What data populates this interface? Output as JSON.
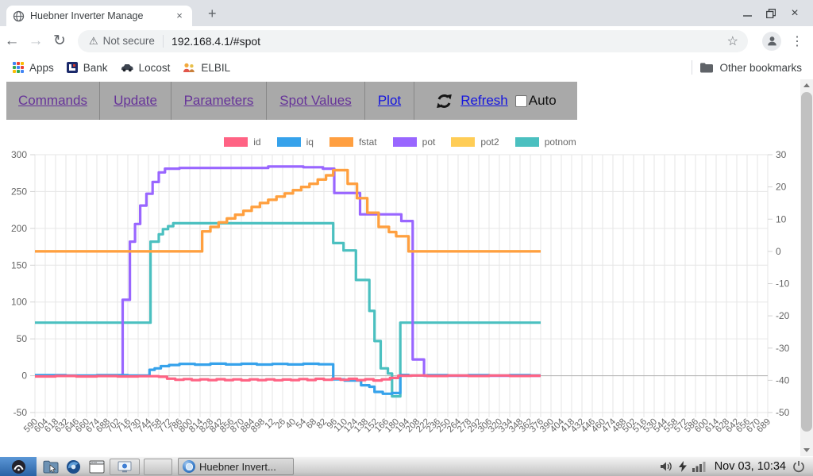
{
  "window": {
    "tab_title": "Huebner Inverter Manage",
    "tab_close": "×",
    "new_tab": "+",
    "close": "×"
  },
  "browser": {
    "security_label": "Not secure",
    "warning_glyph": "⚠",
    "url": "192.168.4.1/#spot",
    "back_glyph": "←",
    "forward_glyph": "→",
    "reload_glyph": "↻",
    "star_glyph": "☆",
    "menu_glyph": "⋮"
  },
  "bookmarks_bar": {
    "items": [
      {
        "label": "Apps"
      },
      {
        "label": "Bank"
      },
      {
        "label": "Locost"
      },
      {
        "label": "ELBIL"
      }
    ],
    "other_label": "Other bookmarks"
  },
  "nav": {
    "items": [
      {
        "label": "Commands",
        "visited": true
      },
      {
        "label": "Update",
        "visited": true
      },
      {
        "label": "Parameters",
        "visited": true
      },
      {
        "label": "Spot Values",
        "visited": true
      },
      {
        "label": "Plot",
        "visited": false
      }
    ],
    "refresh_label": "Refresh",
    "auto_label": "Auto",
    "auto_checked": false
  },
  "taskbar": {
    "task_label": "Huebner Invert...",
    "clock": "Nov 03, 10:34"
  },
  "chart_data": {
    "type": "line",
    "title": "",
    "x_labels": [
      "590",
      "604",
      "618",
      "632",
      "646",
      "660",
      "674",
      "688",
      "702",
      "716",
      "730",
      "744",
      "758",
      "772",
      "786",
      "800",
      "814",
      "828",
      "842",
      "856",
      "870",
      "884",
      "898",
      "12",
      "26",
      "40",
      "54",
      "68",
      "82",
      "96",
      "110",
      "124",
      "138",
      "152",
      "166",
      "180",
      "194",
      "208",
      "222",
      "236",
      "250",
      "264",
      "278",
      "292",
      "306",
      "320",
      "334",
      "348",
      "362",
      "376",
      "390",
      "404",
      "418",
      "432",
      "446",
      "460",
      "474",
      "488",
      "502",
      "516",
      "530",
      "544",
      "558",
      "572",
      "586",
      "600",
      "614",
      "628",
      "642",
      "656",
      "670",
      "689"
    ],
    "left_axis": {
      "min": -50,
      "max": 300,
      "ticks": [
        300,
        250,
        200,
        150,
        100,
        50,
        0,
        -50
      ]
    },
    "right_axis": {
      "min": -50,
      "max": 30,
      "ticks": [
        30,
        20,
        10,
        0,
        -10,
        -20,
        -30,
        -40,
        -50
      ]
    },
    "grid": true,
    "legend_position": "top",
    "data_end_index": 49,
    "series": [
      {
        "name": "id",
        "color": "#FF6384",
        "axis": "left",
        "points": [
          [
            0,
            -1
          ],
          [
            2,
            -0.4
          ],
          [
            4,
            -1
          ],
          [
            6,
            -0.5
          ],
          [
            8,
            -1
          ],
          [
            10,
            -0.7
          ],
          [
            12,
            -1.4
          ],
          [
            12.8,
            -4
          ],
          [
            13.6,
            -5.5
          ],
          [
            14.4,
            -4.5
          ],
          [
            15.2,
            -6
          ],
          [
            16,
            -5
          ],
          [
            16.8,
            -6
          ],
          [
            17.6,
            -4.8
          ],
          [
            18.4,
            -6
          ],
          [
            19.2,
            -5
          ],
          [
            20,
            -6.3
          ],
          [
            20.8,
            -5
          ],
          [
            21.6,
            -6
          ],
          [
            22.4,
            -5
          ],
          [
            23.2,
            -6.2
          ],
          [
            24,
            -5.2
          ],
          [
            24.8,
            -6
          ],
          [
            25.6,
            -4.5
          ],
          [
            26.4,
            -5.8
          ],
          [
            27.2,
            -4.2
          ],
          [
            28,
            -5.5
          ],
          [
            28.8,
            -4
          ],
          [
            29.6,
            -5.5
          ],
          [
            30.4,
            -4.2
          ],
          [
            31.2,
            -6
          ],
          [
            32,
            -4.8
          ],
          [
            32.8,
            -6.5
          ],
          [
            33.6,
            -5
          ],
          [
            34.4,
            -3
          ],
          [
            35.2,
            0
          ],
          [
            36.5,
            0.3
          ],
          [
            38,
            -0.3
          ],
          [
            40,
            0.3
          ],
          [
            42,
            -0.3
          ],
          [
            44,
            0.3
          ],
          [
            46,
            -0.3
          ],
          [
            48,
            0
          ],
          [
            49,
            0
          ]
        ]
      },
      {
        "name": "iq",
        "color": "#36A2EB",
        "axis": "left",
        "points": [
          [
            0,
            0.8
          ],
          [
            3,
            0.3
          ],
          [
            6,
            0.8
          ],
          [
            9,
            0.3
          ],
          [
            11.1,
            8
          ],
          [
            11.6,
            10
          ],
          [
            12.2,
            13
          ],
          [
            13,
            14.5
          ],
          [
            14,
            16
          ],
          [
            15.5,
            15
          ],
          [
            17,
            16.3
          ],
          [
            18.5,
            15.3
          ],
          [
            20,
            16.2
          ],
          [
            21.5,
            15.2
          ],
          [
            23,
            16
          ],
          [
            24.5,
            15.3
          ],
          [
            26,
            16.2
          ],
          [
            27.5,
            15.5
          ],
          [
            28.9,
            -5
          ],
          [
            30,
            -6.5
          ],
          [
            31.6,
            -13
          ],
          [
            32.4,
            -15
          ],
          [
            32.9,
            -22
          ],
          [
            33.7,
            -24.5
          ],
          [
            34.6,
            -23.5
          ],
          [
            35.4,
            1
          ],
          [
            36.2,
            0.3
          ],
          [
            38,
            0.8
          ],
          [
            40,
            0.2
          ],
          [
            42,
            0.8
          ],
          [
            44,
            0.3
          ],
          [
            46,
            0.8
          ],
          [
            48,
            0.4
          ],
          [
            49,
            0.4
          ]
        ]
      },
      {
        "name": "fstat",
        "color": "#FF9F40",
        "axis": "right",
        "points": [
          [
            0,
            0
          ],
          [
            16.2,
            6.2
          ],
          [
            17,
            7.6
          ],
          [
            17.8,
            9
          ],
          [
            18.6,
            10.2
          ],
          [
            19.4,
            11.4
          ],
          [
            20.2,
            12.6
          ],
          [
            21,
            13.8
          ],
          [
            21.8,
            15
          ],
          [
            22.6,
            16
          ],
          [
            23.4,
            17
          ],
          [
            24.2,
            18
          ],
          [
            25,
            19
          ],
          [
            25.8,
            20
          ],
          [
            26.6,
            21
          ],
          [
            27.4,
            22.3
          ],
          [
            28.2,
            23.6
          ],
          [
            28.9,
            25.2
          ],
          [
            30.3,
            21
          ],
          [
            31.2,
            16.5
          ],
          [
            32.2,
            12
          ],
          [
            33.3,
            7.6
          ],
          [
            34.3,
            6
          ],
          [
            35,
            4.7
          ],
          [
            36.2,
            0
          ],
          [
            49,
            0
          ]
        ]
      },
      {
        "name": "pot",
        "color": "#9966FF",
        "axis": "left",
        "points": [
          [
            0,
            0
          ],
          [
            8.5,
            103
          ],
          [
            9.2,
            182
          ],
          [
            9.7,
            206
          ],
          [
            10.2,
            231
          ],
          [
            10.8,
            247
          ],
          [
            11.4,
            263
          ],
          [
            12,
            276
          ],
          [
            12.6,
            281
          ],
          [
            14,
            282
          ],
          [
            22.6,
            284
          ],
          [
            26,
            283
          ],
          [
            27.9,
            281
          ],
          [
            29,
            248
          ],
          [
            31.5,
            219
          ],
          [
            35.5,
            210
          ],
          [
            36.6,
            22
          ],
          [
            37.7,
            0
          ],
          [
            49,
            0
          ]
        ]
      },
      {
        "name": "pot2",
        "color": "#FFCD56",
        "axis": "right",
        "points": [
          [
            0,
            0
          ],
          [
            16.2,
            6.2
          ],
          [
            17,
            7.6
          ],
          [
            17.8,
            9
          ],
          [
            18.6,
            10.2
          ],
          [
            19.4,
            11.4
          ],
          [
            20.2,
            12.6
          ],
          [
            21,
            13.8
          ],
          [
            21.8,
            15
          ],
          [
            22.6,
            16
          ],
          [
            23.4,
            17
          ],
          [
            24.2,
            18
          ],
          [
            25,
            19
          ],
          [
            25.8,
            20
          ],
          [
            26.6,
            21
          ],
          [
            27.4,
            22.3
          ],
          [
            28.2,
            23.6
          ],
          [
            28.9,
            25.2
          ],
          [
            30.3,
            21
          ],
          [
            31.2,
            16.5
          ],
          [
            32.2,
            12
          ],
          [
            33.3,
            7.6
          ],
          [
            34.3,
            6
          ],
          [
            35,
            4.7
          ],
          [
            36.2,
            0
          ],
          [
            49,
            0
          ]
        ]
      },
      {
        "name": "potnom",
        "color": "#4BC0C0",
        "axis": "left",
        "points": [
          [
            0,
            72
          ],
          [
            11.2,
            182
          ],
          [
            12,
            192
          ],
          [
            12.4,
            199
          ],
          [
            12.9,
            203
          ],
          [
            13.4,
            207
          ],
          [
            28.9,
            180
          ],
          [
            29.9,
            170
          ],
          [
            31.1,
            130
          ],
          [
            32.4,
            88
          ],
          [
            32.9,
            47
          ],
          [
            33.5,
            10
          ],
          [
            34.2,
            3
          ],
          [
            34.6,
            -28
          ],
          [
            35.4,
            72
          ],
          [
            49,
            72
          ]
        ]
      }
    ]
  }
}
